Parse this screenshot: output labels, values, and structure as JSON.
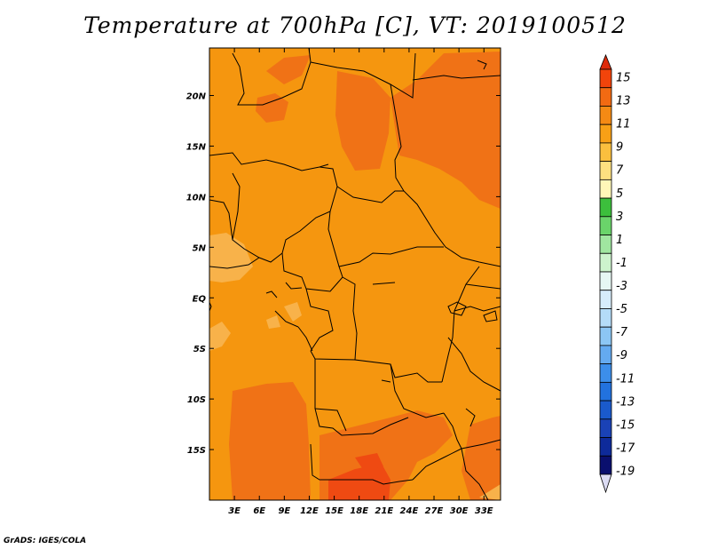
{
  "title": "Temperature at 700hPa [C], VT: 2019100512",
  "footer": "GrADS: IGES/COLA",
  "map": {
    "lat_ticks": [
      {
        "label": "20N",
        "lat": 20
      },
      {
        "label": "15N",
        "lat": 15
      },
      {
        "label": "10N",
        "lat": 10
      },
      {
        "label": "5N",
        "lat": 5
      },
      {
        "label": "EQ",
        "lat": 0
      },
      {
        "label": "5S",
        "lat": -5
      },
      {
        "label": "10S",
        "lat": -10
      },
      {
        "label": "15S",
        "lat": -15
      }
    ],
    "lon_ticks": [
      {
        "label": "3E",
        "lon": 3
      },
      {
        "label": "6E",
        "lon": 6
      },
      {
        "label": "9E",
        "lon": 9
      },
      {
        "label": "12E",
        "lon": 12
      },
      {
        "label": "15E",
        "lon": 15
      },
      {
        "label": "18E",
        "lon": 18
      },
      {
        "label": "21E",
        "lon": 21
      },
      {
        "label": "24E",
        "lon": 24
      },
      {
        "label": "27E",
        "lon": 27
      },
      {
        "label": "30E",
        "lon": 30
      },
      {
        "label": "33E",
        "lon": 33
      }
    ]
  },
  "colorbar": {
    "labels": [
      "15",
      "13",
      "11",
      "9",
      "7",
      "5",
      "3",
      "1",
      "-1",
      "-3",
      "-5",
      "-7",
      "-9",
      "-11",
      "-13",
      "-15",
      "-17",
      "-19"
    ],
    "colors": [
      "#dd2a0a",
      "#f2440b",
      "#f26a12",
      "#f58a14",
      "#f8a016",
      "#fbbf3e",
      "#fde080",
      "#fff7b8",
      "#3cbf3c",
      "#6ad46a",
      "#a0e6a0",
      "#cdf3cd",
      "#e6f7f3",
      "#d6ecfb",
      "#b4dcf8",
      "#8cc6f4",
      "#64aaf0",
      "#3c8eea",
      "#2272de",
      "#1a5acc",
      "#1a42b6",
      "#0e2a9a",
      "#0a0f6e",
      "#dcdcf4"
    ]
  }
}
